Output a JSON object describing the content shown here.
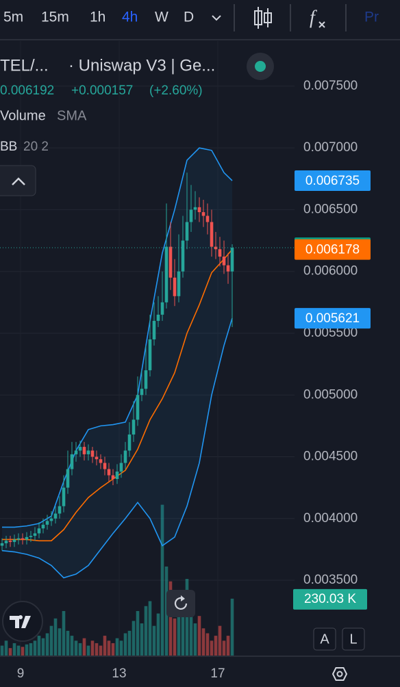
{
  "toolbar": {
    "intervals": [
      "5m",
      "15m",
      "1h",
      "4h",
      "W",
      "D"
    ],
    "tab": "Pr"
  },
  "legend": {
    "symbol": "TEL/...",
    "exchange": "· Uniswap V3 | Ge...",
    "change": "+0.000157",
    "change_pct": "(+2.60%)",
    "volume": "Volume",
    "volume_ma": "SMA",
    "bb": "BB",
    "bb_params": "20 2"
  },
  "buttons": {
    "auto": "A",
    "log": "L"
  },
  "chart_data": {
    "type": "candlestick",
    "x": [
      8.25,
      8.4167,
      8.5833,
      8.75,
      8.9167,
      9.0833,
      9.25,
      9.4167,
      9.5833,
      9.75,
      9.9167,
      10.0833,
      10.25,
      10.4167,
      10.5833,
      10.75,
      10.9167,
      11.0833,
      11.25,
      11.4167,
      11.5833,
      11.75,
      11.9167,
      12.0833,
      12.25,
      12.4167,
      12.5833,
      12.75,
      12.9167,
      13.0833,
      13.25,
      13.4167,
      13.5833,
      13.75,
      13.9167,
      14.0833,
      14.25,
      14.4167,
      14.5833,
      14.75,
      14.9167,
      15.0833,
      15.25,
      15.4167,
      15.5833,
      15.75,
      15.9167,
      16.0833,
      16.25,
      16.4167,
      16.5833,
      16.75,
      16.9167,
      17.0833,
      17.25,
      17.4167,
      17.5833
    ],
    "open": [
      0.00378,
      0.0038,
      0.00382,
      0.00381,
      0.00383,
      0.00384,
      0.00383,
      0.00385,
      0.00386,
      0.00388,
      0.00392,
      0.00395,
      0.00398,
      0.004,
      0.00404,
      0.0041,
      0.00425,
      0.0044,
      0.00452,
      0.00455,
      0.00458,
      0.00452,
      0.00455,
      0.0045,
      0.00448,
      0.00445,
      0.0044,
      0.00435,
      0.00432,
      0.00438,
      0.00445,
      0.00455,
      0.00468,
      0.0048,
      0.005,
      0.00505,
      0.0052,
      0.00545,
      0.0056,
      0.00565,
      0.00575,
      0.0062,
      0.00595,
      0.0058,
      0.006,
      0.00625,
      0.0064,
      0.0065,
      0.00652,
      0.00648,
      0.00645,
      0.0064,
      0.0062,
      0.00618,
      0.00612,
      0.00605,
      0.006
    ],
    "high": [
      0.00384,
      0.00386,
      0.00386,
      0.00387,
      0.00388,
      0.00388,
      0.00389,
      0.0039,
      0.00393,
      0.00397,
      0.004,
      0.00403,
      0.00406,
      0.0041,
      0.00418,
      0.00435,
      0.00455,
      0.00462,
      0.00462,
      0.00463,
      0.00462,
      0.0046,
      0.00458,
      0.00455,
      0.00452,
      0.0045,
      0.00445,
      0.0044,
      0.00444,
      0.00452,
      0.00462,
      0.00478,
      0.00495,
      0.00515,
      0.0052,
      0.0054,
      0.00565,
      0.00575,
      0.0058,
      0.006,
      0.00655,
      0.0064,
      0.0061,
      0.0063,
      0.00645,
      0.0068,
      0.0067,
      0.00665,
      0.0066,
      0.00658,
      0.00655,
      0.0065,
      0.00632,
      0.00628,
      0.00625,
      0.00615,
      0.00622
    ],
    "low": [
      0.00374,
      0.00376,
      0.00377,
      0.00377,
      0.00379,
      0.00379,
      0.00379,
      0.00381,
      0.00382,
      0.00384,
      0.00388,
      0.00391,
      0.00394,
      0.00396,
      0.004,
      0.00405,
      0.0042,
      0.00435,
      0.00446,
      0.0045,
      0.00447,
      0.00447,
      0.00445,
      0.00443,
      0.0044,
      0.00435,
      0.0043,
      0.00427,
      0.00428,
      0.00433,
      0.0044,
      0.0045,
      0.00462,
      0.00475,
      0.00495,
      0.005,
      0.00515,
      0.0054,
      0.00555,
      0.0056,
      0.0057,
      0.00585,
      0.00572,
      0.00575,
      0.00595,
      0.00618,
      0.00632,
      0.00642,
      0.0064,
      0.00636,
      0.0063,
      0.00612,
      0.0061,
      0.00604,
      0.00598,
      0.0059,
      0.00555
    ],
    "close": [
      0.0038,
      0.00382,
      0.00381,
      0.00383,
      0.00384,
      0.00383,
      0.00385,
      0.00386,
      0.00388,
      0.00392,
      0.00395,
      0.00398,
      0.004,
      0.00404,
      0.0041,
      0.00425,
      0.0044,
      0.00452,
      0.00455,
      0.00458,
      0.00452,
      0.00455,
      0.0045,
      0.00448,
      0.00445,
      0.0044,
      0.00435,
      0.00432,
      0.00438,
      0.00445,
      0.00455,
      0.00468,
      0.0048,
      0.005,
      0.00505,
      0.0052,
      0.00545,
      0.0056,
      0.00565,
      0.00575,
      0.0062,
      0.00595,
      0.0058,
      0.006,
      0.00625,
      0.0064,
      0.0065,
      0.00652,
      0.00648,
      0.00645,
      0.0064,
      0.0062,
      0.00618,
      0.00612,
      0.00605,
      0.006,
      0.006192
    ],
    "volume": [
      40000,
      60000,
      30000,
      50000,
      40000,
      35000,
      45000,
      50000,
      60000,
      80000,
      70000,
      90000,
      120000,
      150000,
      110000,
      180000,
      100000,
      80000,
      60000,
      50000,
      70000,
      40000,
      60000,
      50000,
      40000,
      80000,
      60000,
      50000,
      70000,
      60000,
      90000,
      100000,
      140000,
      180000,
      130000,
      200000,
      220000,
      120000,
      170000,
      610000,
      360000,
      300000,
      150000,
      220000,
      180000,
      310000,
      240000,
      130000,
      160000,
      110000,
      90000,
      60000,
      80000,
      120000,
      60000,
      80000,
      230030
    ],
    "volume_last_label": "230.03 K",
    "volume_ylim": [
      0,
      800000
    ],
    "bb_x": [
      8.25,
      8.75,
      9.25,
      9.75,
      10.25,
      10.75,
      11.25,
      11.75,
      12.25,
      12.75,
      13.25,
      13.75,
      14.25,
      14.75,
      15.25,
      15.75,
      16.25,
      16.75,
      17.25,
      17.5833
    ],
    "bb_upper": [
      0.00393,
      0.00393,
      0.00394,
      0.00396,
      0.00402,
      0.0043,
      0.00455,
      0.00472,
      0.00475,
      0.00476,
      0.00478,
      0.005,
      0.0056,
      0.00615,
      0.0065,
      0.0069,
      0.007,
      0.00698,
      0.0068,
      0.006735
    ],
    "bb_middle": [
      0.00383,
      0.00383,
      0.00383,
      0.00382,
      0.00382,
      0.00391,
      0.00405,
      0.00417,
      0.00425,
      0.00432,
      0.00439,
      0.00456,
      0.0048,
      0.00497,
      0.00518,
      0.0055,
      0.00573,
      0.00599,
      0.0061,
      0.006178
    ],
    "bb_lower": [
      0.00374,
      0.00373,
      0.00371,
      0.00368,
      0.00362,
      0.00352,
      0.00355,
      0.00362,
      0.00375,
      0.00388,
      0.004,
      0.00413,
      0.004,
      0.00378,
      0.00385,
      0.0041,
      0.00445,
      0.005,
      0.0054,
      0.005621
    ],
    "up_color": "#26a69a",
    "down_color": "#ef5350",
    "band_color": "#2196f3",
    "middle_color": "#ff6d00",
    "xlim": [
      8.1667,
      20.1111
    ],
    "xticks": [
      9,
      13,
      17
    ],
    "ylim": [
      0.002891,
      0.007865
    ],
    "yticks": [
      {
        "value": 0.0035,
        "label": "0.003500"
      },
      {
        "value": 0.004,
        "label": "0.004000"
      },
      {
        "value": 0.0045,
        "label": "0.004500"
      },
      {
        "value": 0.005,
        "label": "0.005000"
      },
      {
        "value": 0.0055,
        "label": "0.005500"
      },
      {
        "value": 0.006,
        "label": "0.006000"
      },
      {
        "value": 0.0065,
        "label": "0.006500"
      },
      {
        "value": 0.007,
        "label": "0.007000"
      },
      {
        "value": 0.0075,
        "label": "0.007500"
      }
    ],
    "grid": true
  }
}
